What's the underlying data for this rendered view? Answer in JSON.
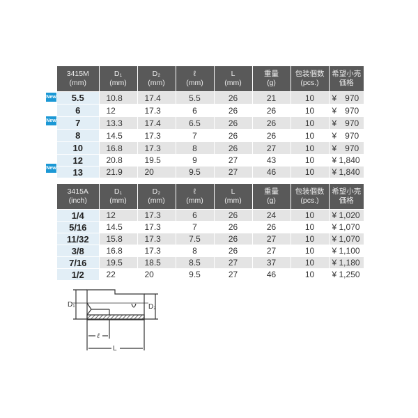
{
  "headers_common": [
    "D₁\n(mm)",
    "D₂\n(mm)",
    "ℓ\n(mm)",
    "L\n(mm)",
    "重量\n(g)",
    "包装個数\n(pcs.)",
    "希望小売\n価格"
  ],
  "table_metric": {
    "model": "3415M",
    "unit": "(mm)",
    "new_badge": "New",
    "rows": [
      {
        "size": "5.5",
        "new": true,
        "d1": "10.8",
        "d2": "17.4",
        "l_small": "5.5",
        "L": "26",
        "weight": "21",
        "pcs": "10",
        "price": "¥　970"
      },
      {
        "size": "6",
        "new": false,
        "d1": "12",
        "d2": "17.3",
        "l_small": "6",
        "L": "26",
        "weight": "26",
        "pcs": "10",
        "price": "¥　970"
      },
      {
        "size": "7",
        "new": true,
        "d1": "13.3",
        "d2": "17.4",
        "l_small": "6.5",
        "L": "26",
        "weight": "26",
        "pcs": "10",
        "price": "¥　970"
      },
      {
        "size": "8",
        "new": false,
        "d1": "14.5",
        "d2": "17.3",
        "l_small": "7",
        "L": "26",
        "weight": "26",
        "pcs": "10",
        "price": "¥　970"
      },
      {
        "size": "10",
        "new": false,
        "d1": "16.8",
        "d2": "17.3",
        "l_small": "8",
        "L": "26",
        "weight": "27",
        "pcs": "10",
        "price": "¥　970"
      },
      {
        "size": "12",
        "new": false,
        "d1": "20.8",
        "d2": "19.5",
        "l_small": "9",
        "L": "27",
        "weight": "43",
        "pcs": "10",
        "price": "¥ 1,840"
      },
      {
        "size": "13",
        "new": true,
        "d1": "21.9",
        "d2": "20",
        "l_small": "9.5",
        "L": "27",
        "weight": "46",
        "pcs": "10",
        "price": "¥ 1,840"
      }
    ]
  },
  "table_inch": {
    "model": "3415A",
    "unit": "(inch)",
    "rows": [
      {
        "size": "1/4",
        "d1": "12",
        "d2": "17.3",
        "l_small": "6",
        "L": "26",
        "weight": "24",
        "pcs": "10",
        "price": "¥ 1,020"
      },
      {
        "size": "5/16",
        "d1": "14.5",
        "d2": "17.3",
        "l_small": "7",
        "L": "26",
        "weight": "26",
        "pcs": "10",
        "price": "¥ 1,070"
      },
      {
        "size": "11/32",
        "d1": "15.8",
        "d2": "17.3",
        "l_small": "7.5",
        "L": "26",
        "weight": "27",
        "pcs": "10",
        "price": "¥ 1,070"
      },
      {
        "size": "3/8",
        "d1": "16.8",
        "d2": "17.3",
        "l_small": "8",
        "L": "26",
        "weight": "27",
        "pcs": "10",
        "price": "¥ 1,100"
      },
      {
        "size": "7/16",
        "d1": "19.5",
        "d2": "18.5",
        "l_small": "8.5",
        "L": "27",
        "weight": "37",
        "pcs": "10",
        "price": "¥ 1,180"
      },
      {
        "size": "1/2",
        "d1": "22",
        "d2": "20",
        "l_small": "9.5",
        "L": "27",
        "weight": "46",
        "pcs": "10",
        "price": "¥ 1,250"
      }
    ]
  },
  "diagram": {
    "d1": "D₁",
    "d2": "D₂",
    "l_small": "ℓ",
    "L": "L"
  }
}
